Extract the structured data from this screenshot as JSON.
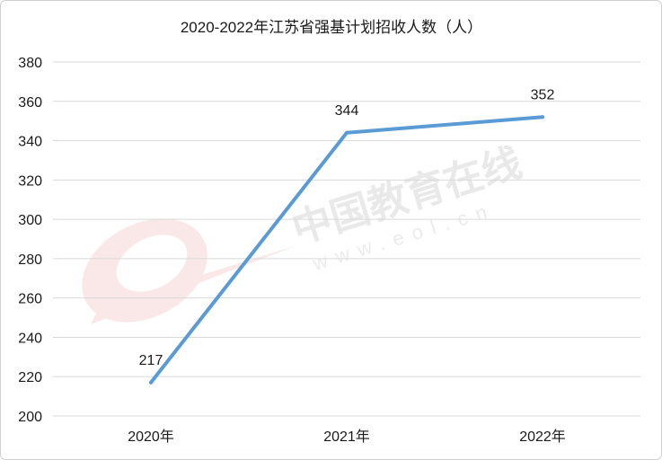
{
  "chart_data": {
    "type": "line",
    "title": "2020-2022年江苏省强基计划招收人数（人）",
    "categories": [
      "2020年",
      "2021年",
      "2022年"
    ],
    "series": [
      {
        "values": [
          217,
          344,
          352
        ],
        "color": "#5b9bd5"
      }
    ],
    "data_labels": [
      "217",
      "344",
      "352"
    ],
    "y_ticks": [
      "200",
      "220",
      "240",
      "260",
      "280",
      "300",
      "320",
      "340",
      "360",
      "380"
    ],
    "ylim": [
      200,
      380
    ],
    "grid": true,
    "legend": "none"
  },
  "watermark": {
    "text": "中国教育在线",
    "url": "www.eol.cn",
    "logo_text": "eol",
    "color": "#e5a8a8"
  }
}
